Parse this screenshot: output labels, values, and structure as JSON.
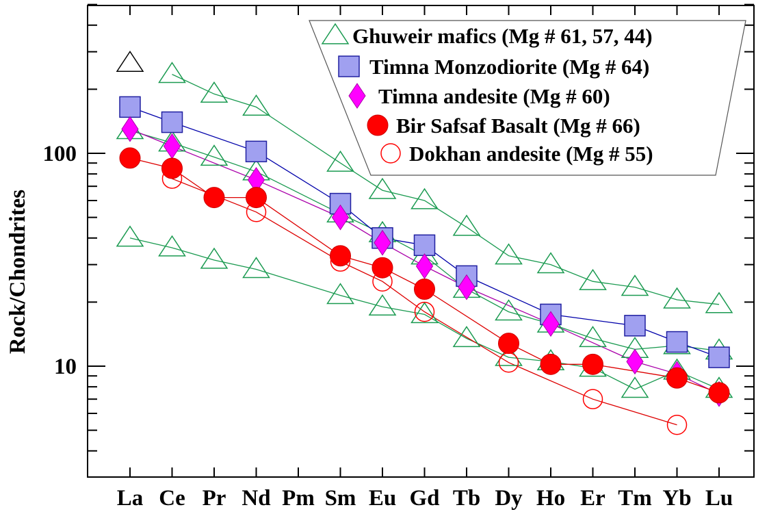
{
  "chart_data": {
    "type": "line",
    "y_scale": "log",
    "ylim": [
      4,
      500
    ],
    "ylabel": "Rock/Chondrites",
    "xlabel": "",
    "categories": [
      "La",
      "Ce",
      "Pr",
      "Nd",
      "Pm",
      "Sm",
      "Eu",
      "Gd",
      "Tb",
      "Dy",
      "Ho",
      "Er",
      "Tm",
      "Yb",
      "Lu"
    ],
    "y_tick_labels": [
      {
        "value": 10,
        "label": "10"
      },
      {
        "value": 100,
        "label": "100"
      }
    ],
    "legend_position": "top-right",
    "series": [
      {
        "name": "Ghuweir mafics (Mg # 61, 57, 44)",
        "group": "ghuweir",
        "marker": "triangle-open",
        "color": "#1a9a50",
        "values": [
          null,
          235,
          190,
          165,
          null,
          90,
          67,
          60,
          45,
          33,
          30,
          25,
          23.5,
          20.5,
          19.5
        ]
      },
      {
        "group": "ghuweir",
        "marker": "triangle-open",
        "color": "#1a9a50",
        "values": [
          128,
          112,
          96,
          82,
          null,
          52,
          42,
          33,
          23,
          18,
          15.8,
          13.5,
          12,
          12.5,
          11.8
        ]
      },
      {
        "group": "ghuweir",
        "marker": "triangle-open",
        "color": "#1a9a50",
        "values": [
          40,
          36,
          31.5,
          28.5,
          null,
          21.5,
          19,
          17.5,
          13.5,
          11,
          10.5,
          9.8,
          7.8,
          9.5,
          7.8
        ]
      },
      {
        "group": "ghuweir-extra",
        "marker": "triangle-open",
        "color": "#000000",
        "values": [
          265,
          null,
          null,
          null,
          null,
          null,
          null,
          null,
          null,
          null,
          null,
          null,
          null,
          null,
          null
        ]
      },
      {
        "name": "Timna Monzodiorite (Mg # 64)",
        "marker": "square",
        "color": "#a0a0f0",
        "line_color": "#0000aa",
        "values": [
          165,
          140,
          null,
          102,
          null,
          58,
          40,
          37,
          26.5,
          null,
          17.5,
          null,
          15.5,
          13,
          11
        ]
      },
      {
        "name": "Timna andesite (Mg # 60)",
        "marker": "diamond",
        "color": "#ff00ff",
        "line_color": "#aa00aa",
        "values": [
          130,
          108,
          null,
          75,
          null,
          50,
          38,
          29.5,
          23.5,
          null,
          15.8,
          null,
          10.5,
          9.2,
          7.4
        ]
      },
      {
        "name": "Bir Safsaf Basalt (Mg # 66)",
        "marker": "circle-filled",
        "color": "#ff0000",
        "line_color": "#dd0000",
        "values": [
          95,
          85,
          62,
          62,
          null,
          33,
          29,
          23,
          null,
          12.8,
          10.2,
          10.2,
          null,
          8.8,
          7.5
        ]
      },
      {
        "name": "Dokhan andesite (Mg # 55)",
        "marker": "circle-open",
        "color": "#ff0000",
        "line_color": "#dd0000",
        "values": [
          null,
          76,
          null,
          53,
          null,
          31,
          25,
          18,
          null,
          10.4,
          null,
          7,
          null,
          5.3,
          null
        ]
      }
    ]
  }
}
